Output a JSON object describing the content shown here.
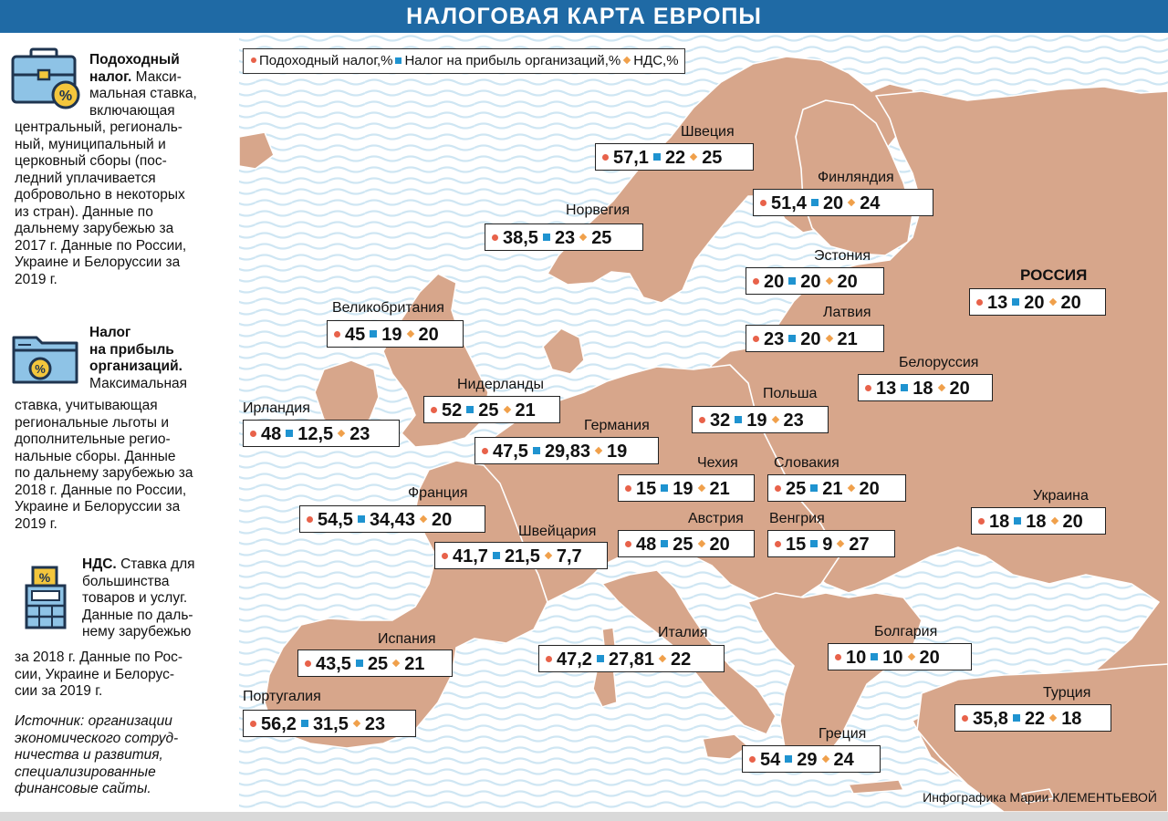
{
  "title": "НАЛОГОВАЯ КАРТА ЕВРОПЫ",
  "legend": {
    "income": "Подоходный налог,%",
    "profit": "Налог на прибыль организаций,%",
    "vat": "НДС,%"
  },
  "sidebar": {
    "income_title": "Подоходный",
    "income_title2": "налог.",
    "income_l1": "Макси-",
    "income_l2": "мальная ставка,",
    "income_l3": "включающая",
    "income_l4": "центральный, региональ-",
    "income_l5": "ный, муниципальный и",
    "income_l6": "церковный сборы (пос-",
    "income_l7": "ледний уплачивается",
    "income_l8": "добровольно в некоторых",
    "income_l9": "из стран). Данные по",
    "income_l10": "дальнему зарубежью за",
    "income_l11": "2017 г. Данные по России,",
    "income_l12": "Украине и Белоруссии за",
    "income_l13": "2019 г.",
    "profit_title1": "Налог",
    "profit_title2": "на прибыль",
    "profit_title3": "организаций.",
    "profit_l1": "Максимальная",
    "profit_l2": "ставка, учитывающая",
    "profit_l3": "региональные льготы и",
    "profit_l4": "дополнительные регио-",
    "profit_l5": "нальные сборы. Данные",
    "profit_l6": "по дальнему зарубежью за",
    "profit_l7": "2018 г. Данные по России,",
    "profit_l8": "Украине и Белоруссии за",
    "profit_l9": "2019 г.",
    "vat_title": "НДС.",
    "vat_l1": "Ставка для",
    "vat_l2": "большинства",
    "vat_l3": "товаров и услуг.",
    "vat_l4": "Данные по даль-",
    "vat_l5": "нему зарубежью",
    "vat_l6": "за 2018 г. Данные по Рос-",
    "vat_l7": "сии, Украине и Белорус-",
    "vat_l8": "сии за 2019 г.",
    "source_l1": "Источник: организации",
    "source_l2": "экономического сотруд-",
    "source_l3": "ничества и развития,",
    "source_l4": "специализированные",
    "source_l5": "финансовые сайты."
  },
  "credit": "Инфографика Марии КЛЕМЕНТЬЕВОЙ",
  "colors": {
    "header": "#1f6aa5",
    "land": "#d7a68b",
    "sea": "#ffffff",
    "wave": "#cfe6f3",
    "income_dot": "#e8624a",
    "profit_square": "#1f93d0",
    "vat_diamond": "#f0a04b"
  },
  "countries": [
    {
      "name": "Швеция",
      "income": "57,1",
      "profit": "22",
      "vat": "25"
    },
    {
      "name": "Финляндия",
      "income": "51,4",
      "profit": "20",
      "vat": "24"
    },
    {
      "name": "Норвегия",
      "income": "38,5",
      "profit": "23",
      "vat": "25"
    },
    {
      "name": "Эстония",
      "income": "20",
      "profit": "20",
      "vat": "20"
    },
    {
      "name": "РОССИЯ",
      "income": "13",
      "profit": "20",
      "vat": "20"
    },
    {
      "name": "Латвия",
      "income": "23",
      "profit": "20",
      "vat": "21"
    },
    {
      "name": "Великобритания",
      "income": "45",
      "profit": "19",
      "vat": "20"
    },
    {
      "name": "Белоруссия",
      "income": "13",
      "profit": "18",
      "vat": "20"
    },
    {
      "name": "Нидерланды",
      "income": "52",
      "profit": "25",
      "vat": "21"
    },
    {
      "name": "Польша",
      "income": "32",
      "profit": "19",
      "vat": "23"
    },
    {
      "name": "Ирландия",
      "income": "48",
      "profit": "12,5",
      "vat": "23"
    },
    {
      "name": "Германия",
      "income": "47,5",
      "profit": "29,83",
      "vat": "19"
    },
    {
      "name": "Чехия",
      "income": "15",
      "profit": "19",
      "vat": "21"
    },
    {
      "name": "Словакия",
      "income": "25",
      "profit": "21",
      "vat": "20"
    },
    {
      "name": "Франция",
      "income": "54,5",
      "profit": "34,43",
      "vat": "20"
    },
    {
      "name": "Украина",
      "income": "18",
      "profit": "18",
      "vat": "20"
    },
    {
      "name": "Швейцария",
      "income": "41,7",
      "profit": "21,5",
      "vat": "7,7"
    },
    {
      "name": "Австрия",
      "income": "48",
      "profit": "25",
      "vat": "20"
    },
    {
      "name": "Венгрия",
      "income": "15",
      "profit": "9",
      "vat": "27"
    },
    {
      "name": "Испания",
      "income": "43,5",
      "profit": "25",
      "vat": "21"
    },
    {
      "name": "Италия",
      "income": "47,2",
      "profit": "27,81",
      "vat": "22"
    },
    {
      "name": "Болгария",
      "income": "10",
      "profit": "10",
      "vat": "20"
    },
    {
      "name": "Португалия",
      "income": "56,2",
      "profit": "31,5",
      "vat": "23"
    },
    {
      "name": "Турция",
      "income": "35,8",
      "profit": "22",
      "vat": "18"
    },
    {
      "name": "Греция",
      "income": "54",
      "profit": "29",
      "vat": "24"
    }
  ]
}
